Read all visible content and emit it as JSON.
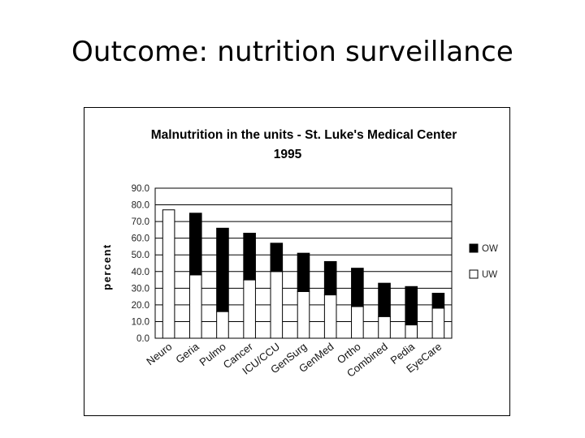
{
  "slide": {
    "title": "Outcome: nutrition surveillance"
  },
  "chart_data": {
    "type": "bar",
    "stacked": true,
    "title": "Malnutrition in the units - St. Luke's Medical Center",
    "subtitle": "1995",
    "ylabel": "percent",
    "xlabel": "",
    "ylim": [
      0,
      90
    ],
    "yticks": [
      "0.0",
      "10.0",
      "20.0",
      "30.0",
      "40.0",
      "50.0",
      "60.0",
      "70.0",
      "80.0",
      "90.0"
    ],
    "grid": true,
    "legend_position": "right",
    "categories": [
      "Neuro",
      "Geria",
      "Pulmo",
      "Cancer",
      "ICU/CCU",
      "GenSurg",
      "GenMed",
      "Ortho",
      "Combined",
      "Pedia",
      "EyeCare"
    ],
    "series": [
      {
        "name": "UW",
        "color": "#ffffff",
        "values": [
          77,
          38,
          16,
          35,
          40,
          28,
          26,
          19,
          13,
          8,
          18
        ]
      },
      {
        "name": "OW",
        "color": "#000000",
        "values": [
          0,
          37,
          50,
          28,
          17,
          23,
          20,
          23,
          20,
          23,
          9
        ]
      }
    ]
  }
}
